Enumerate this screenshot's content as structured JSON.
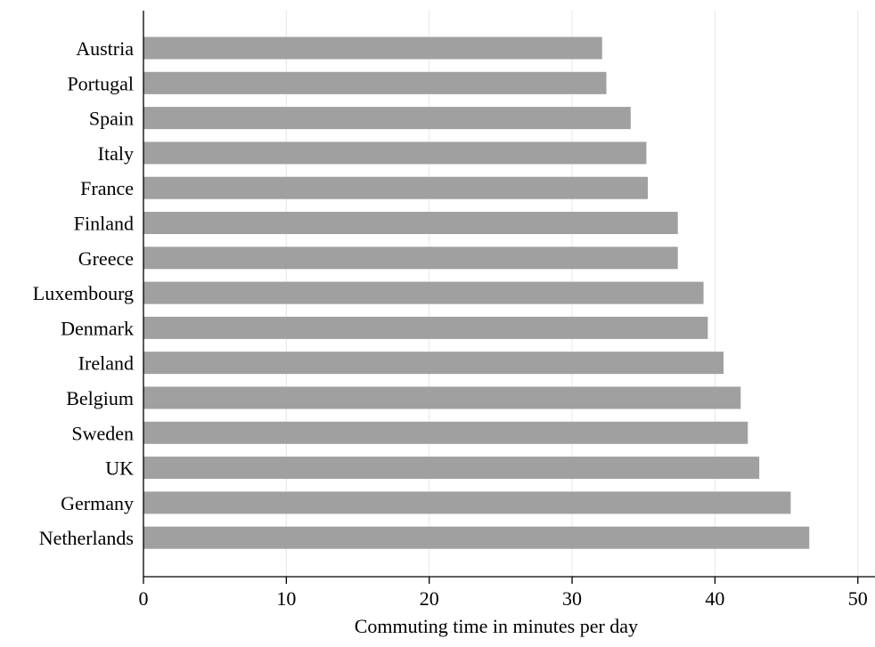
{
  "chart_data": {
    "type": "bar",
    "orientation": "horizontal",
    "categories": [
      "Austria",
      "Portugal",
      "Spain",
      "Italy",
      "France",
      "Finland",
      "Greece",
      "Luxembourg",
      "Denmark",
      "Ireland",
      "Belgium",
      "Sweden",
      "UK",
      "Germany",
      "Netherlands"
    ],
    "values": [
      32.1,
      32.4,
      34.1,
      35.2,
      35.3,
      37.4,
      37.4,
      39.2,
      39.5,
      40.6,
      41.8,
      42.3,
      43.1,
      45.3,
      46.6
    ],
    "title": "",
    "xlabel": "Commuting time in minutes per day",
    "ylabel": "",
    "xlim": [
      0,
      51.2
    ],
    "xticks": [
      0,
      10,
      20,
      30,
      40,
      50
    ],
    "xtick_labels": [
      "0",
      "10",
      "20",
      "30",
      "40",
      "50"
    ],
    "grid": "vertical",
    "colors": {
      "bar": "#a0a0a0",
      "grid": "#e3eeee",
      "axis": "#000000"
    }
  }
}
